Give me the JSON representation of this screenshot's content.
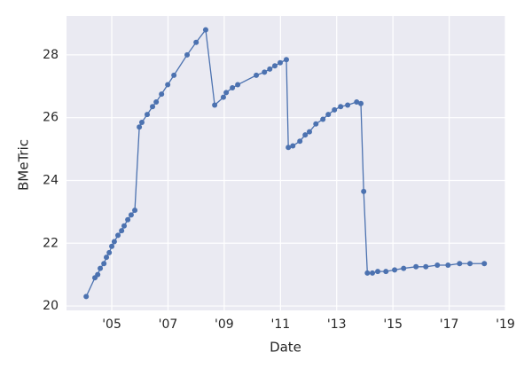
{
  "chart_data": {
    "type": "line",
    "x_label": "Date",
    "y_label": "BMeTric",
    "x": [
      2004.09,
      2004.4,
      2004.5,
      2004.59,
      2004.72,
      2004.81,
      2004.91,
      2005.0,
      2005.09,
      2005.22,
      2005.35,
      2005.44,
      2005.57,
      2005.69,
      2005.82,
      2005.98,
      2006.07,
      2006.26,
      2006.45,
      2006.58,
      2006.77,
      2006.99,
      2007.21,
      2007.68,
      2008.0,
      2008.34,
      2008.66,
      2008.97,
      2009.07,
      2009.29,
      2009.48,
      2010.14,
      2010.43,
      2010.62,
      2010.8,
      2010.99,
      2011.21,
      2011.28,
      2011.44,
      2011.69,
      2011.88,
      2012.03,
      2012.26,
      2012.51,
      2012.7,
      2012.92,
      2013.14,
      2013.39,
      2013.71,
      2013.86,
      2013.96,
      2014.09,
      2014.27,
      2014.46,
      2014.75,
      2015.06,
      2015.38,
      2015.82,
      2016.17,
      2016.58,
      2016.96,
      2017.37,
      2017.74,
      2018.25
    ],
    "series": [
      {
        "name": "BMeTric",
        "color": "#4c72b0",
        "values": [
          20.3,
          20.9,
          21.0,
          21.2,
          21.35,
          21.55,
          21.7,
          21.9,
          22.05,
          22.25,
          22.4,
          22.55,
          22.75,
          22.9,
          23.05,
          25.7,
          25.85,
          26.1,
          26.35,
          26.5,
          26.75,
          27.05,
          27.35,
          28.0,
          28.4,
          28.8,
          26.4,
          26.65,
          26.8,
          26.95,
          27.05,
          27.35,
          27.45,
          27.55,
          27.65,
          27.75,
          27.85,
          25.05,
          25.1,
          25.25,
          25.45,
          25.55,
          25.8,
          25.95,
          26.1,
          26.25,
          26.35,
          26.4,
          26.5,
          26.45,
          23.65,
          21.05,
          21.05,
          21.1,
          21.1,
          21.15,
          21.2,
          21.25,
          21.25,
          21.3,
          21.3,
          21.35,
          21.35,
          21.35
        ]
      }
    ],
    "xlim": [
      2003.39,
      2019.0
    ],
    "xticks": [
      {
        "value": 2005,
        "label": "'05"
      },
      {
        "value": 2007,
        "label": "'07"
      },
      {
        "value": 2009,
        "label": "'09"
      },
      {
        "value": 2011,
        "label": "'11"
      },
      {
        "value": 2013,
        "label": "'13"
      },
      {
        "value": 2015,
        "label": "'15"
      },
      {
        "value": 2017,
        "label": "'17"
      },
      {
        "value": 2019,
        "label": "'19"
      }
    ],
    "ylim": [
      19.86,
      29.24
    ],
    "yticks": [
      20,
      22,
      24,
      26,
      28
    ],
    "grid": true,
    "background": "#eaeaf2"
  }
}
